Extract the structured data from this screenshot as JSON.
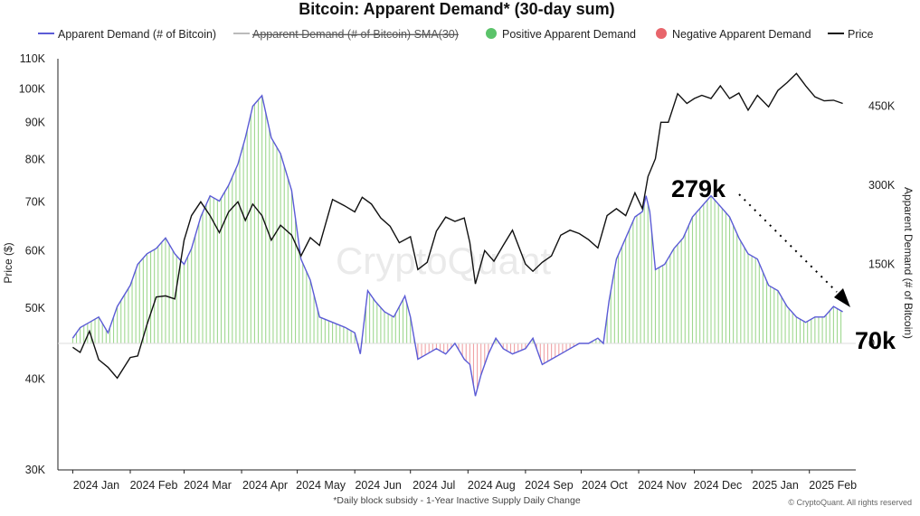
{
  "chart_data": {
    "type": "bar",
    "title": "Bitcoin: Apparent Demand* (30-day sum)",
    "ylabel": "Price ($)",
    "y2label": "Apparent Demand (# of Bitcoin)",
    "footnote": "*Daily block subsidy - 1-Year Inactive Supply Daily Change",
    "credit": "© CryptoQuant. All rights reserved",
    "watermark": "CryptoQuant",
    "legend": [
      {
        "label": "Apparent Demand (# of Bitcoin)",
        "kind": "line",
        "color": "#5b5bd6"
      },
      {
        "label": "Apparent Demand (# of Bitcoin) SMA(30)",
        "kind": "line",
        "color": "#bbbbbb",
        "struck": true
      },
      {
        "label": "Positive Apparent Demand",
        "kind": "dot",
        "color": "#5bc36a"
      },
      {
        "label": "Negative Apparent Demand",
        "kind": "dot",
        "color": "#e8656b"
      },
      {
        "label": "Price",
        "kind": "line",
        "color": "#111111"
      }
    ],
    "x_ticks": [
      "2024 Jan",
      "2024 Feb",
      "2024 Mar",
      "2024 Apr",
      "2024 May",
      "2024 Jun",
      "2024 Jul",
      "2024 Aug",
      "2024 Sep",
      "2024 Oct",
      "2024 Nov",
      "2024 Dec",
      "2025 Jan",
      "2025 Feb"
    ],
    "x_tick_dates": [
      "2024-01-01",
      "2024-02-01",
      "2024-03-01",
      "2024-04-01",
      "2024-05-01",
      "2024-06-01",
      "2024-07-01",
      "2024-08-01",
      "2024-09-01",
      "2024-10-01",
      "2024-11-01",
      "2024-12-01",
      "2025-01-01",
      "2025-02-01"
    ],
    "xlim": [
      "2023-12-24",
      "2025-02-26"
    ],
    "left_axis": {
      "scale": "log",
      "ylim": [
        30000,
        110000
      ],
      "ticks": [
        30000,
        40000,
        50000,
        60000,
        70000,
        80000,
        90000,
        100000,
        110000
      ],
      "tick_labels": [
        "30K",
        "40K",
        "50K",
        "60K",
        "70K",
        "80K",
        "90K",
        "100K",
        "110K"
      ]
    },
    "right_axis": {
      "scale": "linear",
      "ylim": [
        -240000,
        540000
      ],
      "ticks": [
        0,
        150000,
        300000,
        450000
      ],
      "tick_labels": [
        "0",
        "150K",
        "300K",
        "450K"
      ]
    },
    "demand_series": {
      "name": "Apparent Demand (# of Bitcoin)",
      "dates": [
        "2024-01-01",
        "2024-01-05",
        "2024-01-10",
        "2024-01-15",
        "2024-01-20",
        "2024-01-25",
        "2024-02-01",
        "2024-02-05",
        "2024-02-10",
        "2024-02-15",
        "2024-02-20",
        "2024-02-25",
        "2024-03-01",
        "2024-03-05",
        "2024-03-10",
        "2024-03-15",
        "2024-03-20",
        "2024-03-25",
        "2024-03-30",
        "2024-04-03",
        "2024-04-07",
        "2024-04-12",
        "2024-04-17",
        "2024-04-22",
        "2024-04-28",
        "2024-05-03",
        "2024-05-08",
        "2024-05-13",
        "2024-05-20",
        "2024-05-27",
        "2024-06-01",
        "2024-06-04",
        "2024-06-08",
        "2024-06-12",
        "2024-06-17",
        "2024-06-22",
        "2024-06-28",
        "2024-07-01",
        "2024-07-05",
        "2024-07-10",
        "2024-07-15",
        "2024-07-20",
        "2024-07-25",
        "2024-07-30",
        "2024-08-02",
        "2024-08-05",
        "2024-08-08",
        "2024-08-12",
        "2024-08-16",
        "2024-08-20",
        "2024-08-25",
        "2024-09-01",
        "2024-09-05",
        "2024-09-10",
        "2024-09-15",
        "2024-09-20",
        "2024-09-25",
        "2024-09-30",
        "2024-10-05",
        "2024-10-10",
        "2024-10-13",
        "2024-10-16",
        "2024-10-20",
        "2024-10-25",
        "2024-10-30",
        "2024-11-03",
        "2024-11-05",
        "2024-11-07",
        "2024-11-10",
        "2024-11-15",
        "2024-11-20",
        "2024-11-25",
        "2024-11-30",
        "2024-12-05",
        "2024-12-10",
        "2024-12-15",
        "2024-12-20",
        "2024-12-25",
        "2024-12-30",
        "2025-01-04",
        "2025-01-10",
        "2025-01-15",
        "2025-01-20",
        "2025-01-25",
        "2025-01-30",
        "2025-02-04",
        "2025-02-09",
        "2025-02-14",
        "2025-02-19"
      ],
      "values": [
        10000,
        30000,
        40000,
        50000,
        20000,
        70000,
        110000,
        150000,
        170000,
        180000,
        200000,
        170000,
        150000,
        180000,
        240000,
        280000,
        270000,
        300000,
        340000,
        390000,
        450000,
        470000,
        390000,
        360000,
        290000,
        160000,
        120000,
        50000,
        40000,
        30000,
        20000,
        -20000,
        100000,
        80000,
        60000,
        50000,
        90000,
        50000,
        -30000,
        -20000,
        -10000,
        -20000,
        0,
        -30000,
        -40000,
        -100000,
        -60000,
        -20000,
        10000,
        -10000,
        -20000,
        -10000,
        10000,
        -40000,
        -30000,
        -20000,
        -10000,
        0,
        0,
        10000,
        0,
        80000,
        160000,
        200000,
        240000,
        250000,
        280000,
        250000,
        140000,
        150000,
        180000,
        200000,
        240000,
        260000,
        280000,
        260000,
        240000,
        200000,
        170000,
        160000,
        110000,
        100000,
        70000,
        50000,
        40000,
        50000,
        50000,
        70000,
        60000
      ]
    },
    "price_series": {
      "name": "Price",
      "dates": [
        "2024-01-01",
        "2024-01-05",
        "2024-01-10",
        "2024-01-15",
        "2024-01-20",
        "2024-01-25",
        "2024-02-01",
        "2024-02-05",
        "2024-02-10",
        "2024-02-15",
        "2024-02-20",
        "2024-02-25",
        "2024-03-01",
        "2024-03-05",
        "2024-03-10",
        "2024-03-15",
        "2024-03-20",
        "2024-03-25",
        "2024-03-30",
        "2024-04-03",
        "2024-04-07",
        "2024-04-12",
        "2024-04-17",
        "2024-04-22",
        "2024-04-28",
        "2024-05-03",
        "2024-05-08",
        "2024-05-13",
        "2024-05-20",
        "2024-05-27",
        "2024-06-01",
        "2024-06-05",
        "2024-06-10",
        "2024-06-15",
        "2024-06-20",
        "2024-06-25",
        "2024-07-01",
        "2024-07-05",
        "2024-07-10",
        "2024-07-15",
        "2024-07-20",
        "2024-07-25",
        "2024-07-30",
        "2024-08-02",
        "2024-08-05",
        "2024-08-10",
        "2024-08-15",
        "2024-08-20",
        "2024-08-25",
        "2024-09-01",
        "2024-09-05",
        "2024-09-10",
        "2024-09-15",
        "2024-09-20",
        "2024-09-25",
        "2024-09-30",
        "2024-10-05",
        "2024-10-10",
        "2024-10-15",
        "2024-10-20",
        "2024-10-25",
        "2024-10-30",
        "2024-11-03",
        "2024-11-06",
        "2024-11-10",
        "2024-11-13",
        "2024-11-17",
        "2024-11-22",
        "2024-11-27",
        "2024-12-01",
        "2024-12-05",
        "2024-12-10",
        "2024-12-15",
        "2024-12-20",
        "2024-12-25",
        "2024-12-30",
        "2025-01-04",
        "2025-01-10",
        "2025-01-15",
        "2025-01-20",
        "2025-01-25",
        "2025-01-30",
        "2025-02-04",
        "2025-02-09",
        "2025-02-14",
        "2025-02-19"
      ],
      "values": [
        44200,
        43500,
        46500,
        42500,
        41500,
        40100,
        42800,
        43000,
        47500,
        51800,
        52000,
        51500,
        62000,
        67000,
        70000,
        67000,
        63500,
        67800,
        70000,
        66000,
        69500,
        67000,
        62000,
        65000,
        63000,
        59000,
        62500,
        61000,
        70500,
        69000,
        67800,
        71000,
        69500,
        66500,
        64800,
        61500,
        62700,
        56500,
        57800,
        63800,
        66700,
        65800,
        66500,
        61500,
        54000,
        60000,
        58000,
        61000,
        64000,
        57500,
        56200,
        57800,
        59000,
        63000,
        64000,
        63300,
        62100,
        60500,
        67000,
        68500,
        67000,
        72000,
        68500,
        75800,
        80200,
        90000,
        90000,
        98500,
        95500,
        97000,
        98000,
        97000,
        101000,
        97000,
        98700,
        93500,
        98000,
        94500,
        99500,
        102000,
        105000,
        101000,
        97500,
        96300,
        96500,
        95500
      ]
    },
    "annotations": [
      {
        "text": "279k",
        "kind": "label"
      },
      {
        "text": "70k",
        "kind": "label"
      }
    ]
  }
}
